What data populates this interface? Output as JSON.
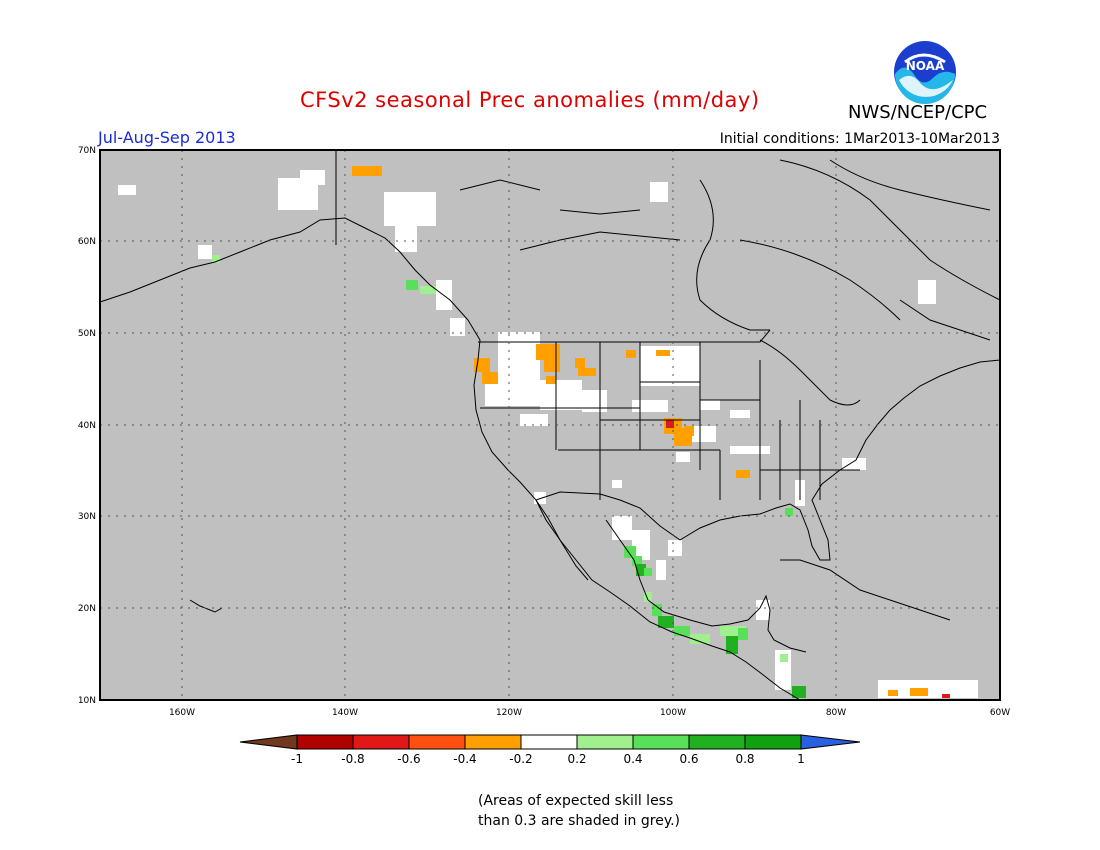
{
  "header": {
    "title": "CFSv2 seasonal Prec anomalies (mm/day)",
    "agency": "NWS/NCEP/CPC",
    "logo_text": "NOAA",
    "season": "Jul-Aug-Sep 2013",
    "initial_conditions": "Initial conditions: 1Mar2013-10Mar2013"
  },
  "map": {
    "lat_labels": [
      "70N",
      "60N",
      "50N",
      "40N",
      "30N",
      "20N",
      "10N"
    ],
    "lon_labels": [
      "160W",
      "140W",
      "120W",
      "100W",
      "80W",
      "60W"
    ],
    "background_color": "#c0c0c0",
    "land_outline_color": "#000000"
  },
  "legend": {
    "tick_labels": [
      "-1",
      "-0.8",
      "-0.6",
      "-0.4",
      "-0.2",
      "0.2",
      "0.4",
      "0.6",
      "0.8",
      "1"
    ],
    "colors": [
      "#70381c",
      "#b00000",
      "#e01818",
      "#ff5010",
      "#ffa000",
      "#ffffff",
      "#a0f090",
      "#58e058",
      "#20b020",
      "#10a010",
      "#2860e0"
    ]
  },
  "footnote": {
    "line1": "(Areas of expected skill less",
    "line2": "than 0.3 are shaded in grey.)"
  }
}
